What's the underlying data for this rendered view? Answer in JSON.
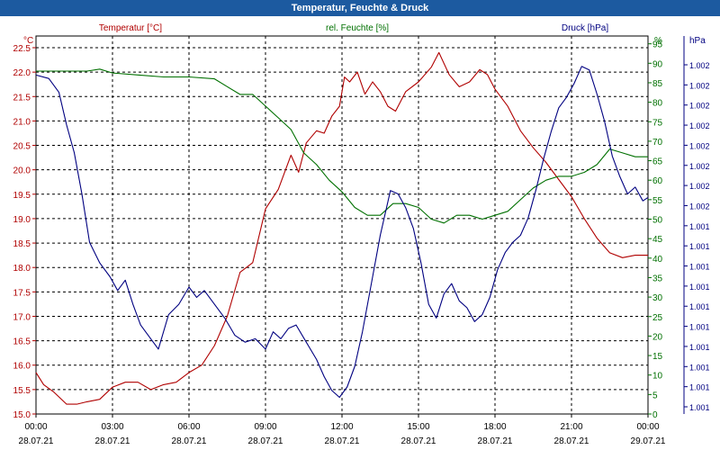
{
  "window": {
    "title": "Temperatur, Feuchte & Druck"
  },
  "chart_data": {
    "type": "line",
    "title": "Temperatur, Feuchte & Druck",
    "x_ticks": [
      {
        "time": "00:00",
        "date": "28.07.21"
      },
      {
        "time": "03:00",
        "date": "28.07.21"
      },
      {
        "time": "06:00",
        "date": "28.07.21"
      },
      {
        "time": "09:00",
        "date": "28.07.21"
      },
      {
        "time": "12:00",
        "date": "28.07.21"
      },
      {
        "time": "15:00",
        "date": "28.07.21"
      },
      {
        "time": "18:00",
        "date": "28.07.21"
      },
      {
        "time": "21:00",
        "date": "28.07.21"
      },
      {
        "time": "00:00",
        "date": "29.07.21"
      }
    ],
    "xlim": [
      0,
      24
    ],
    "grid": true,
    "axes": {
      "temperature": {
        "label": "Temperatur [°C]",
        "unit": "°C",
        "ylim": [
          15.0,
          22.5
        ],
        "ticks": [
          "15.0",
          "15.5",
          "16.0",
          "16.5",
          "17.0",
          "17.5",
          "18.0",
          "18.5",
          "19.0",
          "19.5",
          "20.0",
          "20.5",
          "21.0",
          "21.5",
          "22.0",
          "22.5"
        ],
        "color": "#b00000"
      },
      "humidity": {
        "label": "rel. Feuchte [%]",
        "unit": "%",
        "ylim": [
          0,
          97
        ],
        "ticks": [
          "0",
          "5",
          "10",
          "15",
          "20",
          "25",
          "30",
          "35",
          "40",
          "45",
          "50",
          "55",
          "60",
          "65",
          "70",
          "75",
          "80",
          "85",
          "90",
          "95"
        ],
        "color": "#007000"
      },
      "pressure": {
        "label": "Druck [hPa]",
        "unit": "hPa",
        "ylim": [
          0,
          1
        ],
        "ticks": [
          "1.002",
          "1.002",
          "1.002",
          "1.002",
          "1.002",
          "1.002",
          "1.002",
          "1.002",
          "1.001",
          "1.001",
          "1.001",
          "1.001",
          "1.001",
          "1.001",
          "1.001",
          "1.001",
          "1.001",
          "1.001"
        ],
        "color": "#000080"
      }
    },
    "series": [
      {
        "name": "Temperatur [°C]",
        "axis": "temperature",
        "color": "#b00000",
        "x": [
          0,
          0.3,
          0.7,
          1.2,
          1.6,
          2.0,
          2.5,
          3.0,
          3.5,
          4.0,
          4.5,
          5.0,
          5.5,
          6.0,
          6.5,
          7.0,
          7.5,
          8.0,
          8.5,
          9.0,
          9.5,
          10.0,
          10.3,
          10.6,
          11.0,
          11.3,
          11.6,
          11.9,
          12.1,
          12.3,
          12.6,
          12.9,
          13.2,
          13.5,
          13.8,
          14.1,
          14.5,
          15.0,
          15.5,
          15.8,
          16.2,
          16.6,
          17.0,
          17.4,
          17.7,
          18.0,
          18.5,
          19.0,
          19.5,
          20.0,
          20.5,
          21.0,
          21.5,
          22.0,
          22.5,
          23.0,
          23.5,
          24.0
        ],
        "values": [
          15.85,
          15.6,
          15.45,
          15.2,
          15.2,
          15.25,
          15.3,
          15.55,
          15.65,
          15.65,
          15.5,
          15.6,
          15.65,
          15.85,
          16.0,
          16.4,
          17.0,
          17.9,
          18.1,
          19.2,
          19.6,
          20.3,
          19.95,
          20.55,
          20.8,
          20.75,
          21.1,
          21.3,
          21.9,
          21.8,
          22.0,
          21.55,
          21.8,
          21.6,
          21.3,
          21.2,
          21.6,
          21.8,
          22.1,
          22.4,
          21.95,
          21.7,
          21.8,
          22.05,
          21.95,
          21.65,
          21.3,
          20.8,
          20.45,
          20.15,
          19.8,
          19.45,
          19.0,
          18.6,
          18.3,
          18.2,
          18.25,
          18.25
        ]
      },
      {
        "name": "rel. Feuchte [%]",
        "axis": "humidity",
        "color": "#007000",
        "x": [
          0,
          1.0,
          2.0,
          2.5,
          3.0,
          4.0,
          5.0,
          6.0,
          7.0,
          7.5,
          8.0,
          8.5,
          9.0,
          9.5,
          10.0,
          10.5,
          11.0,
          11.5,
          12.0,
          12.5,
          13.0,
          13.5,
          14.0,
          14.5,
          15.0,
          15.5,
          16.0,
          16.5,
          17.0,
          17.5,
          18.0,
          18.5,
          19.0,
          19.5,
          20.0,
          20.5,
          21.0,
          21.5,
          22.0,
          22.5,
          23.0,
          23.5,
          24.0
        ],
        "values": [
          88,
          88,
          88,
          88.5,
          87.5,
          87,
          86.5,
          86.5,
          86,
          84,
          82,
          82,
          79,
          76,
          73,
          67,
          64,
          60,
          57,
          53,
          51,
          51,
          54,
          54,
          53,
          50,
          49,
          51,
          51,
          50,
          51,
          52,
          55,
          58,
          60,
          61,
          61,
          62,
          64,
          68,
          67,
          66,
          66
        ]
      },
      {
        "name": "Druck [hPa]",
        "axis": "pressure",
        "color": "#000080",
        "x": [
          0,
          0.5,
          0.9,
          1.2,
          1.5,
          1.8,
          2.1,
          2.5,
          2.9,
          3.2,
          3.5,
          3.8,
          4.1,
          4.5,
          4.8,
          5.2,
          5.6,
          6.0,
          6.3,
          6.6,
          7.0,
          7.4,
          7.8,
          8.2,
          8.6,
          9.0,
          9.3,
          9.6,
          9.9,
          10.2,
          10.6,
          11.0,
          11.3,
          11.6,
          11.9,
          12.2,
          12.5,
          12.8,
          13.1,
          13.5,
          13.9,
          14.2,
          14.5,
          14.8,
          15.1,
          15.4,
          15.7,
          16.0,
          16.3,
          16.6,
          16.9,
          17.2,
          17.5,
          17.8,
          18.1,
          18.4,
          18.7,
          19.0,
          19.3,
          19.6,
          19.9,
          20.2,
          20.5,
          20.8,
          21.1,
          21.4,
          21.7,
          22.0,
          22.3,
          22.6,
          22.9,
          23.2,
          23.5,
          23.8,
          24.0
        ],
        "values": [
          0.965,
          0.955,
          0.915,
          0.82,
          0.74,
          0.62,
          0.48,
          0.42,
          0.38,
          0.34,
          0.37,
          0.3,
          0.24,
          0.2,
          0.17,
          0.27,
          0.3,
          0.35,
          0.32,
          0.34,
          0.3,
          0.26,
          0.21,
          0.19,
          0.2,
          0.17,
          0.22,
          0.2,
          0.23,
          0.24,
          0.19,
          0.14,
          0.09,
          0.05,
          0.03,
          0.06,
          0.12,
          0.22,
          0.34,
          0.5,
          0.63,
          0.62,
          0.58,
          0.52,
          0.42,
          0.3,
          0.26,
          0.33,
          0.36,
          0.31,
          0.29,
          0.25,
          0.27,
          0.32,
          0.4,
          0.45,
          0.48,
          0.5,
          0.55,
          0.63,
          0.72,
          0.8,
          0.87,
          0.9,
          0.94,
          0.99,
          0.98,
          0.91,
          0.83,
          0.73,
          0.67,
          0.62,
          0.64,
          0.6,
          0.61
        ]
      }
    ]
  }
}
